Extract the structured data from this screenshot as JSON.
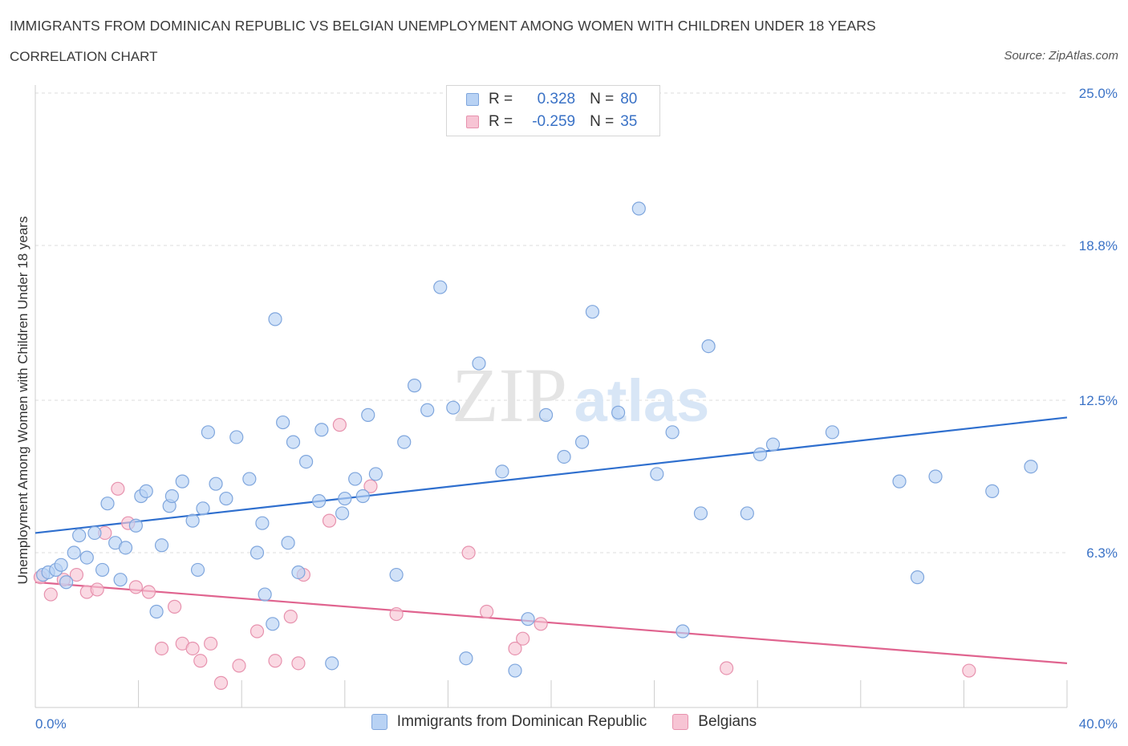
{
  "header": {
    "title": "IMMIGRANTS FROM DOMINICAN REPUBLIC VS BELGIAN UNEMPLOYMENT AMONG WOMEN WITH CHILDREN UNDER 18 YEARS",
    "subtitle": "CORRELATION CHART",
    "source": "Source: ZipAtlas.com"
  },
  "watermark": {
    "zip": "ZIP",
    "atlas": "atlas"
  },
  "legend": {
    "rows": [
      {
        "r_label": "R =",
        "r_value": "0.328",
        "n_label": "N =",
        "n_value": "80"
      },
      {
        "r_label": "R =",
        "r_value": "-0.259",
        "n_label": "N =",
        "n_value": "35"
      }
    ]
  },
  "colors": {
    "blue_fill": "#b8d2f4",
    "blue_stroke": "#7fa6dd",
    "blue_line": "#2f6fce",
    "pink_fill": "#f7c4d4",
    "pink_stroke": "#e792ae",
    "pink_line": "#e0648f",
    "tick_label": "#3a72c6",
    "grid": "#dddddd"
  },
  "chart_data": {
    "type": "scatter",
    "title": "IMMIGRANTS FROM DOMINICAN REPUBLIC VS BELGIAN UNEMPLOYMENT AMONG WOMEN WITH CHILDREN UNDER 18 YEARS",
    "subtitle": "CORRELATION CHART",
    "xlabel": "",
    "ylabel": "Unemployment Among Women with Children Under 18 years",
    "xlim": [
      0,
      40
    ],
    "ylim": [
      0,
      25
    ],
    "x_tick_labels": [
      {
        "value": 0,
        "label": "0.0%"
      },
      {
        "value": 40,
        "label": "40.0%"
      }
    ],
    "y_tick_labels": [
      {
        "value": 6.3,
        "label": "6.3%"
      },
      {
        "value": 12.5,
        "label": "12.5%"
      },
      {
        "value": 18.8,
        "label": "18.8%"
      },
      {
        "value": 25.0,
        "label": "25.0%"
      }
    ],
    "x_minor_ticks": [
      4,
      8,
      12,
      16,
      20,
      24,
      28,
      32,
      36,
      40
    ],
    "grid": true,
    "legend_position": "top-center",
    "series": [
      {
        "name": "Immigrants from Dominican Republic",
        "color": "#b8d2f4",
        "r": 0.328,
        "n": 80,
        "trend": {
          "x": [
            0,
            40
          ],
          "y": [
            7.1,
            11.8
          ]
        },
        "points": [
          [
            0.3,
            5.4
          ],
          [
            0.5,
            5.5
          ],
          [
            0.8,
            5.6
          ],
          [
            1.0,
            5.8
          ],
          [
            1.2,
            5.1
          ],
          [
            1.5,
            6.3
          ],
          [
            1.7,
            7.0
          ],
          [
            2.0,
            6.1
          ],
          [
            2.3,
            7.1
          ],
          [
            2.6,
            5.6
          ],
          [
            2.8,
            8.3
          ],
          [
            3.1,
            6.7
          ],
          [
            3.3,
            5.2
          ],
          [
            3.5,
            6.5
          ],
          [
            3.9,
            7.4
          ],
          [
            4.1,
            8.6
          ],
          [
            4.3,
            8.8
          ],
          [
            4.7,
            3.9
          ],
          [
            4.9,
            6.6
          ],
          [
            5.2,
            8.2
          ],
          [
            5.3,
            8.6
          ],
          [
            5.7,
            9.2
          ],
          [
            6.1,
            7.6
          ],
          [
            6.3,
            5.6
          ],
          [
            6.5,
            8.1
          ],
          [
            6.7,
            11.2
          ],
          [
            7.0,
            9.1
          ],
          [
            7.4,
            8.5
          ],
          [
            7.8,
            11.0
          ],
          [
            8.3,
            9.3
          ],
          [
            8.6,
            6.3
          ],
          [
            8.8,
            7.5
          ],
          [
            8.9,
            4.6
          ],
          [
            9.2,
            3.4
          ],
          [
            9.3,
            15.8
          ],
          [
            9.6,
            11.6
          ],
          [
            9.8,
            6.7
          ],
          [
            10.0,
            10.8
          ],
          [
            10.2,
            5.5
          ],
          [
            10.5,
            10.0
          ],
          [
            11.0,
            8.4
          ],
          [
            11.1,
            11.3
          ],
          [
            11.5,
            1.8
          ],
          [
            11.9,
            7.9
          ],
          [
            12.0,
            8.5
          ],
          [
            12.4,
            9.3
          ],
          [
            12.7,
            8.6
          ],
          [
            12.9,
            11.9
          ],
          [
            13.2,
            9.5
          ],
          [
            14.0,
            5.4
          ],
          [
            14.3,
            10.8
          ],
          [
            14.7,
            13.1
          ],
          [
            15.2,
            12.1
          ],
          [
            15.7,
            17.1
          ],
          [
            16.2,
            12.2
          ],
          [
            16.7,
            2.0
          ],
          [
            17.2,
            14.0
          ],
          [
            18.1,
            9.6
          ],
          [
            18.6,
            1.5
          ],
          [
            19.1,
            3.6
          ],
          [
            19.8,
            11.9
          ],
          [
            20.5,
            10.2
          ],
          [
            21.2,
            10.8
          ],
          [
            21.6,
            16.1
          ],
          [
            22.6,
            12.0
          ],
          [
            23.4,
            20.3
          ],
          [
            24.1,
            9.5
          ],
          [
            24.7,
            11.2
          ],
          [
            25.1,
            3.1
          ],
          [
            25.8,
            7.9
          ],
          [
            26.1,
            14.7
          ],
          [
            27.6,
            7.9
          ],
          [
            28.1,
            10.3
          ],
          [
            28.6,
            10.7
          ],
          [
            30.9,
            11.2
          ],
          [
            33.5,
            9.2
          ],
          [
            34.2,
            5.3
          ],
          [
            34.9,
            9.4
          ],
          [
            37.1,
            8.8
          ],
          [
            38.6,
            9.8
          ]
        ]
      },
      {
        "name": "Belgians",
        "color": "#f7c4d4",
        "r": -0.259,
        "n": 35,
        "trend": {
          "x": [
            0,
            40
          ],
          "y": [
            5.1,
            1.8
          ]
        },
        "points": [
          [
            0.2,
            5.3
          ],
          [
            0.6,
            4.6
          ],
          [
            1.1,
            5.2
          ],
          [
            1.6,
            5.4
          ],
          [
            2.0,
            4.7
          ],
          [
            2.4,
            4.8
          ],
          [
            2.7,
            7.1
          ],
          [
            3.2,
            8.9
          ],
          [
            3.6,
            7.5
          ],
          [
            3.9,
            4.9
          ],
          [
            4.4,
            4.7
          ],
          [
            4.9,
            2.4
          ],
          [
            5.4,
            4.1
          ],
          [
            5.7,
            2.6
          ],
          [
            6.1,
            2.4
          ],
          [
            6.4,
            1.9
          ],
          [
            6.8,
            2.6
          ],
          [
            7.2,
            1.0
          ],
          [
            7.9,
            1.7
          ],
          [
            8.6,
            3.1
          ],
          [
            9.3,
            1.9
          ],
          [
            9.9,
            3.7
          ],
          [
            10.2,
            1.8
          ],
          [
            10.4,
            5.4
          ],
          [
            11.4,
            7.6
          ],
          [
            11.8,
            11.5
          ],
          [
            13.0,
            9.0
          ],
          [
            14.0,
            3.8
          ],
          [
            16.8,
            6.3
          ],
          [
            17.5,
            3.9
          ],
          [
            18.6,
            2.4
          ],
          [
            18.9,
            2.8
          ],
          [
            19.6,
            3.4
          ],
          [
            26.8,
            1.6
          ],
          [
            36.2,
            1.5
          ]
        ]
      }
    ]
  },
  "bottom_legend": {
    "items": [
      {
        "label": "Immigrants from Dominican Republic"
      },
      {
        "label": "Belgians"
      }
    ]
  }
}
